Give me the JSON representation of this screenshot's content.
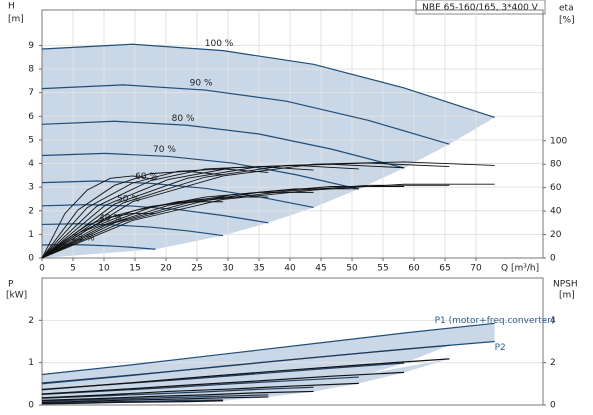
{
  "chart_data": [
    {
      "type": "line",
      "title": "NBE 65-160/165, 3*400 V",
      "x_label": "Q [m³/h]",
      "y_label": "H",
      "y_unit": "[m]",
      "y2_label": "eta",
      "y2_unit": "[%]",
      "xlim": [
        0,
        80.8
      ],
      "xticks": [
        0,
        5,
        10,
        15,
        20,
        25,
        30,
        35,
        40,
        45,
        50,
        55,
        60,
        65,
        70
      ],
      "ylim": [
        0,
        10.5
      ],
      "yticks": [
        0,
        1,
        2,
        3,
        4,
        5,
        6,
        7,
        8,
        9
      ],
      "y2lim": [
        0,
        211.6
      ],
      "y2ticks": [
        0,
        20,
        40,
        60,
        80,
        100
      ],
      "grid": true,
      "area_color": "#c9d7e7",
      "series": [
        {
          "name": "100 %",
          "color": "#1f4e79",
          "x": [
            0,
            14.6,
            29.2,
            43.8,
            58.4,
            73
          ],
          "values": [
            8.85,
            9.05,
            8.78,
            8.2,
            7.2,
            5.95
          ]
        },
        {
          "name": "90 %",
          "color": "#1f4e79",
          "x": [
            0,
            13.1,
            26.3,
            39.4,
            52.6,
            65.7
          ],
          "values": [
            7.17,
            7.33,
            7.11,
            6.64,
            5.83,
            4.82
          ]
        },
        {
          "name": "80 %",
          "color": "#1f4e79",
          "x": [
            0,
            11.7,
            23.4,
            35.0,
            46.7,
            58.4
          ],
          "values": [
            5.66,
            5.79,
            5.62,
            5.25,
            4.61,
            3.81
          ]
        },
        {
          "name": "70 %",
          "color": "#1f4e79",
          "x": [
            0,
            10.2,
            20.4,
            30.7,
            40.9,
            51.1
          ],
          "values": [
            4.34,
            4.43,
            4.3,
            4.02,
            3.53,
            2.92
          ]
        },
        {
          "name": "60 %",
          "color": "#1f4e79",
          "x": [
            0,
            8.8,
            17.5,
            26.3,
            35.0,
            43.8
          ],
          "values": [
            3.19,
            3.26,
            3.16,
            2.95,
            2.59,
            2.14
          ]
        },
        {
          "name": "50 %",
          "color": "#1f4e79",
          "x": [
            0,
            7.3,
            14.6,
            21.9,
            29.2,
            36.5
          ],
          "values": [
            2.21,
            2.26,
            2.2,
            2.05,
            1.8,
            1.49
          ]
        },
        {
          "name": "40 %",
          "color": "#1f4e79",
          "x": [
            0,
            5.8,
            11.7,
            17.5,
            23.4,
            29.2
          ],
          "values": [
            1.42,
            1.45,
            1.4,
            1.31,
            1.15,
            0.95
          ]
        },
        {
          "name": "25 %",
          "color": "#1f4e79",
          "x": [
            0,
            3.7,
            7.3,
            11.0,
            14.6,
            18.3
          ],
          "values": [
            0.55,
            0.57,
            0.55,
            0.51,
            0.45,
            0.37
          ]
        },
        {
          "axis": "y2",
          "color": "#111111",
          "x": [
            0,
            14.6,
            29.2,
            43.8,
            58.4,
            73
          ],
          "values": [
            0,
            48,
            70,
            80,
            82,
            79
          ]
        },
        {
          "axis": "y2",
          "color": "#111111",
          "x": [
            0,
            13.1,
            26.3,
            39.4,
            52.6,
            65.7
          ],
          "values": [
            0,
            47,
            69,
            79,
            81,
            78
          ]
        },
        {
          "axis": "y2",
          "color": "#111111",
          "x": [
            0,
            11.7,
            23.4,
            35.0,
            46.7,
            58.4
          ],
          "values": [
            0,
            46,
            68,
            78,
            80,
            77
          ]
        },
        {
          "axis": "y2",
          "color": "#111111",
          "x": [
            0,
            10.2,
            20.4,
            30.7,
            40.9,
            51.1
          ],
          "values": [
            0,
            45,
            67,
            77,
            79,
            76
          ]
        },
        {
          "axis": "y2",
          "color": "#111111",
          "x": [
            0,
            8.8,
            17.5,
            26.3,
            35.0,
            43.8
          ],
          "values": [
            0,
            44,
            66,
            76,
            78,
            75
          ]
        },
        {
          "axis": "y2",
          "color": "#111111",
          "x": [
            0,
            7.3,
            14.6,
            21.9,
            29.2,
            36.5
          ],
          "values": [
            0,
            43,
            64,
            74,
            76,
            73
          ]
        },
        {
          "axis": "y2",
          "color": "#111111",
          "x": [
            0,
            5.8,
            11.7,
            17.5,
            23.4,
            29.2
          ],
          "values": [
            0,
            41,
            62,
            72,
            74,
            71
          ]
        },
        {
          "axis": "y2",
          "color": "#111111",
          "x": [
            0,
            3.7,
            7.3,
            11.0,
            14.6,
            18.3
          ],
          "values": [
            0,
            38,
            58,
            68,
            70,
            67
          ]
        },
        {
          "axis": "y2",
          "color": "#111111",
          "x": [
            0,
            14.6,
            29.2,
            43.8,
            58.4,
            73
          ],
          "values": [
            0,
            32,
            50,
            58,
            63,
            63
          ]
        },
        {
          "axis": "y2",
          "color": "#111111",
          "x": [
            0,
            13.1,
            26.3,
            39.4,
            52.6,
            65.7
          ],
          "values": [
            0,
            31,
            49,
            57,
            62,
            62
          ]
        },
        {
          "axis": "y2",
          "color": "#111111",
          "x": [
            0,
            11.7,
            23.4,
            35.0,
            46.7,
            58.4
          ],
          "values": [
            0,
            30,
            47,
            56,
            61,
            61
          ]
        },
        {
          "axis": "y2",
          "color": "#111111",
          "x": [
            0,
            10.2,
            20.4,
            30.7,
            40.9,
            51.1
          ],
          "values": [
            0,
            28,
            45,
            54,
            59,
            59
          ]
        },
        {
          "axis": "y2",
          "color": "#111111",
          "x": [
            0,
            8.8,
            17.5,
            26.3,
            35.0,
            43.8
          ],
          "values": [
            0,
            26,
            43,
            52,
            56,
            56
          ]
        },
        {
          "axis": "y2",
          "color": "#111111",
          "x": [
            0,
            7.3,
            14.6,
            21.9,
            29.2,
            36.5
          ],
          "values": [
            0,
            24,
            40,
            48,
            52,
            52
          ]
        },
        {
          "axis": "y2",
          "color": "#111111",
          "x": [
            0,
            5.8,
            11.7,
            17.5,
            23.4,
            29.2
          ],
          "values": [
            0,
            21,
            36,
            44,
            48,
            48
          ]
        },
        {
          "axis": "y2",
          "color": "#111111",
          "x": [
            0,
            3.7,
            7.3,
            11.0,
            14.6,
            18.3
          ],
          "values": [
            0,
            15,
            28,
            35,
            38,
            38
          ]
        }
      ]
    },
    {
      "type": "line",
      "y_label": "P",
      "y_unit": "[kW]",
      "y2_label": "NPSH",
      "y2_unit": "[m]",
      "xlim": [
        0,
        80.8
      ],
      "ylim": [
        0,
        3
      ],
      "yticks": [
        0,
        1,
        2
      ],
      "y2lim": [
        0,
        6
      ],
      "y2ticks": [
        0,
        2,
        4
      ],
      "grid": true,
      "area_color": "#c9d7e7",
      "annotations": [
        "P1 (motor+freq.converter)",
        "P2"
      ],
      "series": [
        {
          "color": "#1f4e79",
          "x": [
            0,
            14.6,
            29.2,
            43.8,
            58.4,
            73
          ],
          "values": [
            0.72,
            0.95,
            1.2,
            1.45,
            1.7,
            1.93
          ]
        },
        {
          "color": "#1f4e79",
          "x": [
            0,
            14.6,
            29.2,
            43.8,
            58.4,
            73
          ],
          "values": [
            0.5,
            0.7,
            0.92,
            1.12,
            1.32,
            1.5
          ]
        },
        {
          "color": "#1f3a5a",
          "x": [
            0,
            13.1,
            26.3,
            39.4,
            52.6,
            65.7
          ],
          "values": [
            0.52,
            0.69,
            0.87,
            1.06,
            1.24,
            1.41
          ]
        },
        {
          "color": "#1f3a5a",
          "x": [
            0,
            11.7,
            23.4,
            35.0,
            46.7,
            58.4
          ],
          "values": [
            0.37,
            0.49,
            0.61,
            0.74,
            0.87,
            0.99
          ]
        },
        {
          "color": "#1f3a5a",
          "x": [
            0,
            10.2,
            20.4,
            30.7,
            40.9,
            51.1
          ],
          "values": [
            0.25,
            0.33,
            0.41,
            0.5,
            0.58,
            0.66
          ]
        },
        {
          "color": "#1f3a5a",
          "x": [
            0,
            8.8,
            17.5,
            26.3,
            35.0,
            43.8
          ],
          "values": [
            0.16,
            0.21,
            0.26,
            0.31,
            0.37,
            0.42
          ]
        },
        {
          "color": "#1f3a5a",
          "x": [
            0,
            7.3,
            14.6,
            21.9,
            29.2,
            36.5
          ],
          "values": [
            0.09,
            0.12,
            0.15,
            0.18,
            0.21,
            0.24
          ]
        },
        {
          "color": "#1f3a5a",
          "x": [
            0,
            5.8,
            11.7,
            17.5,
            23.4,
            29.2
          ],
          "values": [
            0.05,
            0.06,
            0.08,
            0.09,
            0.11,
            0.12
          ]
        },
        {
          "color": "#111111",
          "x": [
            0,
            13.1,
            26.3,
            39.4,
            52.6,
            65.7
          ],
          "values": [
            0.36,
            0.51,
            0.67,
            0.82,
            0.96,
            1.09
          ]
        },
        {
          "color": "#111111",
          "x": [
            0,
            11.7,
            23.4,
            35.0,
            46.7,
            58.4
          ],
          "values": [
            0.26,
            0.36,
            0.47,
            0.57,
            0.68,
            0.77
          ]
        },
        {
          "color": "#111111",
          "x": [
            0,
            10.2,
            20.4,
            30.7,
            40.9,
            51.1
          ],
          "values": [
            0.17,
            0.24,
            0.32,
            0.38,
            0.45,
            0.51
          ]
        },
        {
          "color": "#111111",
          "x": [
            0,
            8.8,
            17.5,
            26.3,
            35.0,
            43.8
          ],
          "values": [
            0.11,
            0.15,
            0.2,
            0.24,
            0.29,
            0.32
          ]
        },
        {
          "color": "#111111",
          "x": [
            0,
            7.3,
            14.6,
            21.9,
            29.2,
            36.5
          ],
          "values": [
            0.06,
            0.09,
            0.12,
            0.14,
            0.17,
            0.19
          ]
        },
        {
          "color": "#111111",
          "x": [
            0,
            5.8,
            11.7,
            17.5,
            23.4,
            29.2
          ],
          "values": [
            0.03,
            0.04,
            0.06,
            0.07,
            0.08,
            0.1
          ]
        }
      ]
    }
  ]
}
